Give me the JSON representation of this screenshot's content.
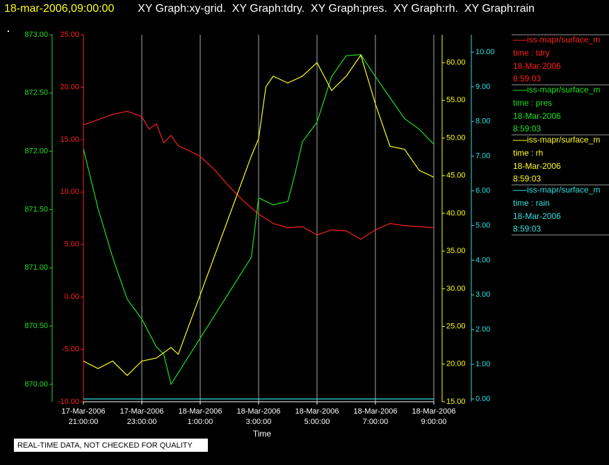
{
  "chart_data": {
    "type": "line",
    "title": "18-mar-2006,09:00:00",
    "subtitle": "XY Graph:xy-grid.  XY Graph:tdry.  XY Graph:pres.  XY Graph:rh.  XY Graph:rain",
    "x_label": "Time",
    "note": "REAL-TIME DATA, NOT CHECKED FOR QUALITY",
    "xlim": [
      "2006-03-17T21:00",
      "2006-03-18T09:00"
    ],
    "xticks": [
      {
        "value": "2006-03-17T21:00",
        "label": [
          "17-Mar-2006",
          "21:00:00"
        ]
      },
      {
        "value": "2006-03-17T23:00",
        "label": [
          "17-Mar-2006",
          "23:00:00"
        ]
      },
      {
        "value": "2006-03-18T01:00",
        "label": [
          "18-Mar-2006",
          "1:00:00"
        ]
      },
      {
        "value": "2006-03-18T03:00",
        "label": [
          "18-Mar-2006",
          "3:00:00"
        ]
      },
      {
        "value": "2006-03-18T05:00",
        "label": [
          "18-Mar-2006",
          "5:00:00"
        ]
      },
      {
        "value": "2006-03-18T07:00",
        "label": [
          "18-Mar-2006",
          "7:00:00"
        ]
      },
      {
        "value": "2006-03-18T09:00",
        "label": [
          "18-Mar-2006",
          "9:00:00"
        ]
      }
    ],
    "grid": true,
    "series": [
      {
        "name": "iss-mapr/surface_m",
        "label": "time : tdry",
        "date": "18-Mar-2006",
        "time": "8:59:03",
        "color": "#ff2020",
        "ylim": [
          -10,
          25
        ],
        "yticks": [
          {
            "value": -10,
            "label": "-10.00"
          },
          {
            "value": -5,
            "label": "-5.00"
          },
          {
            "value": 0,
            "label": "0.00"
          },
          {
            "value": 5,
            "label": "5.00"
          },
          {
            "value": 10,
            "label": "10.00"
          },
          {
            "value": 15,
            "label": "15.00"
          },
          {
            "value": 20,
            "label": "20.00"
          },
          {
            "value": 25,
            "label": "25.00"
          }
        ],
        "x": [
          "2006-03-17T21:00",
          "2006-03-17T21:30",
          "2006-03-17T22:00",
          "2006-03-17T22:30",
          "2006-03-17T23:00",
          "2006-03-17T23:15",
          "2006-03-17T23:30",
          "2006-03-17T23:45",
          "2006-03-18T00:00",
          "2006-03-18T00:15",
          "2006-03-18T00:30",
          "2006-03-18T01:00",
          "2006-03-18T01:30",
          "2006-03-18T02:00",
          "2006-03-18T02:30",
          "2006-03-18T03:00",
          "2006-03-18T03:30",
          "2006-03-18T04:00",
          "2006-03-18T04:30",
          "2006-03-18T05:00",
          "2006-03-18T05:30",
          "2006-03-18T06:00",
          "2006-03-18T06:30",
          "2006-03-18T07:00",
          "2006-03-18T07:30",
          "2006-03-18T08:00",
          "2006-03-18T08:30",
          "2006-03-18T09:00"
        ],
        "values": [
          16.4,
          16.9,
          17.4,
          17.7,
          17.2,
          16.0,
          16.5,
          14.7,
          15.4,
          14.4,
          14.1,
          13.4,
          12.1,
          10.5,
          9.1,
          7.9,
          7.0,
          6.6,
          6.7,
          5.9,
          6.4,
          6.3,
          5.5,
          6.4,
          7.0,
          6.8,
          6.7,
          6.6
        ]
      },
      {
        "name": "iss-mapr/surface_m",
        "label": "time : pres",
        "date": "18-Mar-2006",
        "time": "8:59:03",
        "color": "#20e020",
        "ylim": [
          869.85,
          873.0
        ],
        "yticks": [
          {
            "value": 870,
            "label": "870.00"
          },
          {
            "value": 870.5,
            "label": "870.50"
          },
          {
            "value": 871,
            "label": "871.00"
          },
          {
            "value": 871.5,
            "label": "871.50"
          },
          {
            "value": 872,
            "label": "872.00"
          },
          {
            "value": 872.5,
            "label": "872.50"
          },
          {
            "value": 873,
            "label": "873.00"
          }
        ],
        "x": [
          "2006-03-17T21:00",
          "2006-03-17T21:30",
          "2006-03-17T22:00",
          "2006-03-17T22:30",
          "2006-03-17T23:00",
          "2006-03-17T23:30",
          "2006-03-17T23:45",
          "2006-03-18T00:00",
          "2006-03-18T02:45",
          "2006-03-18T03:00",
          "2006-03-18T03:30",
          "2006-03-18T04:00",
          "2006-03-18T04:15",
          "2006-03-18T04:30",
          "2006-03-18T05:00",
          "2006-03-18T05:30",
          "2006-03-18T06:00",
          "2006-03-18T06:30",
          "2006-03-18T07:00",
          "2006-03-18T07:30",
          "2006-03-18T08:00",
          "2006-03-18T08:30",
          "2006-03-18T09:00"
        ],
        "values": [
          872.02,
          871.51,
          871.09,
          870.73,
          870.56,
          870.32,
          870.26,
          870.0,
          871.09,
          871.6,
          871.54,
          871.57,
          871.81,
          872.08,
          872.25,
          872.64,
          872.82,
          872.83,
          872.64,
          872.46,
          872.28,
          872.19,
          872.06
        ]
      },
      {
        "name": "iss-mapr/surface_m",
        "label": "time : rh",
        "date": "18-Mar-2006",
        "time": "8:59:03",
        "color": "#ffff20",
        "ylim": [
          15,
          63.7
        ],
        "yticks": [
          {
            "value": 15,
            "label": "15.00"
          },
          {
            "value": 20,
            "label": "20.00"
          },
          {
            "value": 25,
            "label": "25.00"
          },
          {
            "value": 30,
            "label": "30.00"
          },
          {
            "value": 35,
            "label": "35.00"
          },
          {
            "value": 40,
            "label": "40.00"
          },
          {
            "value": 45,
            "label": "45.00"
          },
          {
            "value": 50,
            "label": "50.00"
          },
          {
            "value": 55,
            "label": "55.00"
          },
          {
            "value": 60,
            "label": "60.00"
          }
        ],
        "x": [
          "2006-03-17T21:00",
          "2006-03-17T21:30",
          "2006-03-17T22:00",
          "2006-03-17T22:30",
          "2006-03-17T23:00",
          "2006-03-17T23:30",
          "2006-03-18T00:00",
          "2006-03-18T00:15",
          "2006-03-18T02:45",
          "2006-03-18T03:00",
          "2006-03-18T03:15",
          "2006-03-18T03:30",
          "2006-03-18T04:00",
          "2006-03-18T04:30",
          "2006-03-18T05:00",
          "2006-03-18T05:30",
          "2006-03-18T06:00",
          "2006-03-18T06:30",
          "2006-03-18T07:00",
          "2006-03-18T07:30",
          "2006-03-18T08:00",
          "2006-03-18T08:30",
          "2006-03-18T09:00"
        ],
        "values": [
          20.4,
          19.4,
          20.4,
          18.5,
          20.4,
          20.8,
          22.2,
          21.3,
          47.6,
          49.9,
          56.8,
          58.2,
          57.3,
          58.2,
          60.0,
          56.3,
          58.2,
          61.0,
          54.5,
          48.9,
          48.5,
          45.7,
          44.8
        ]
      },
      {
        "name": "iss-mapr/surface_m",
        "label": "time : rain",
        "date": "18-Mar-2006",
        "time": "8:59:03",
        "color": "#30e0e0",
        "ylim": [
          -0.08,
          10.5
        ],
        "yticks": [
          {
            "value": 0,
            "label": "0.00"
          },
          {
            "value": 1,
            "label": "1.00"
          },
          {
            "value": 2,
            "label": "2.00"
          },
          {
            "value": 3,
            "label": "3.00"
          },
          {
            "value": 4,
            "label": "4.00"
          },
          {
            "value": 5,
            "label": "5.00"
          },
          {
            "value": 6,
            "label": "6.00"
          },
          {
            "value": 7,
            "label": "7.00"
          },
          {
            "value": 8,
            "label": "8.00"
          },
          {
            "value": 9,
            "label": "9.00"
          },
          {
            "value": 10,
            "label": "10.00"
          }
        ],
        "x": [
          "2006-03-17T21:00",
          "2006-03-18T09:00"
        ],
        "values": [
          0,
          0
        ]
      }
    ]
  }
}
